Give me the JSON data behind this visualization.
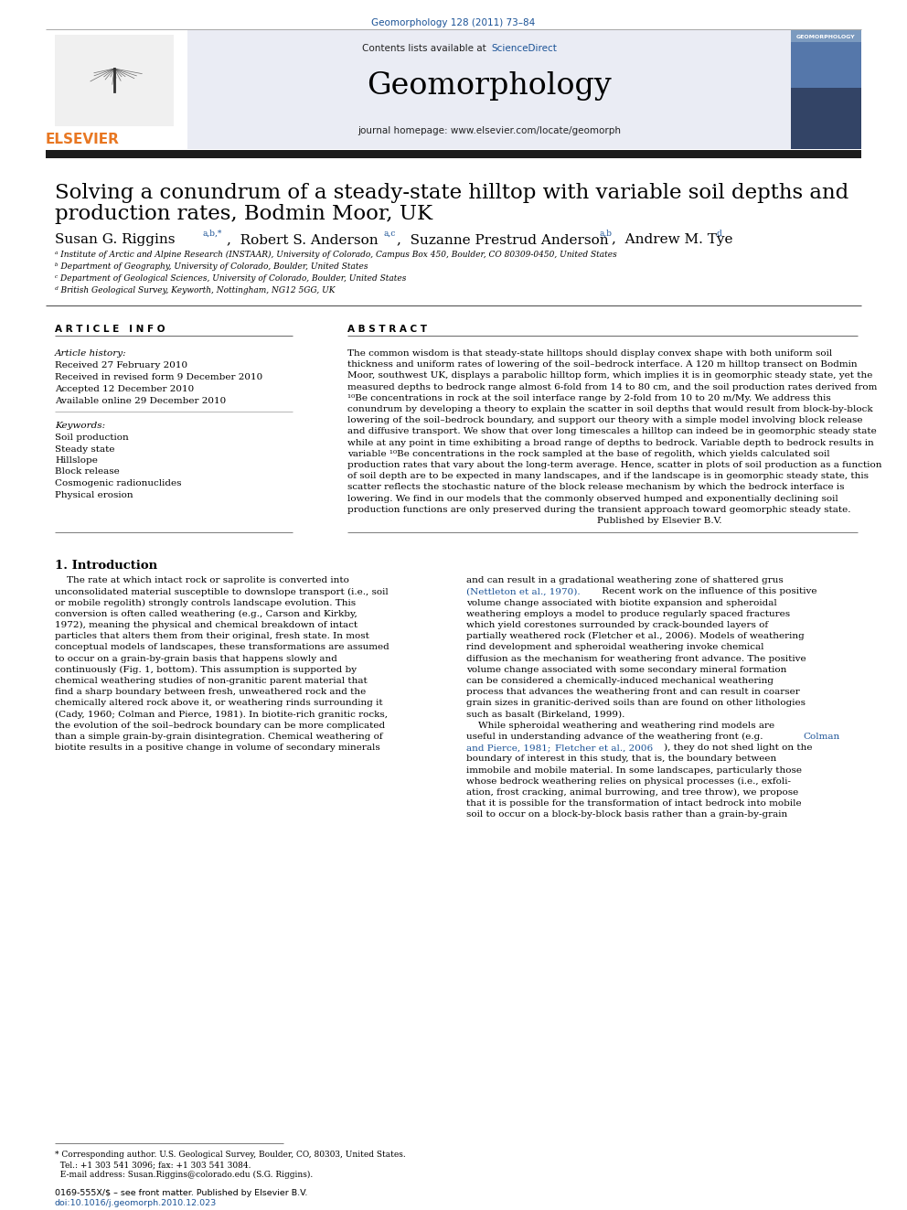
{
  "journal_ref": "Geomorphology 128 (2011) 73–84",
  "contents_text": "Contents lists available at ",
  "sciencedirect_text": "ScienceDirect",
  "journal_name": "Geomorphology",
  "journal_homepage": "journal homepage: www.elsevier.com/locate/geomorph",
  "title_line1": "Solving a conundrum of a steady-state hilltop with variable soil depths and",
  "title_line2": "production rates, Bodmin Moor, UK",
  "affil_a": "Institute of Arctic and Alpine Research (INSTAAR), University of Colorado, Campus Box 450, Boulder, CO 80309-0450, United States",
  "affil_b": "Department of Geography, University of Colorado, Boulder, United States",
  "affil_c": "Department of Geological Sciences, University of Colorado, Boulder, United States",
  "affil_d": "British Geological Survey, Keyworth, Nottingham, NG12 5GG, UK",
  "article_info_header": "A R T I C L E   I N F O",
  "abstract_header": "A B S T R A C T",
  "article_history_label": "Article history:",
  "received1": "Received 27 February 2010",
  "received2": "Received in revised form 9 December 2010",
  "accepted": "Accepted 12 December 2010",
  "available": "Available online 29 December 2010",
  "keywords_label": "Keywords:",
  "keywords": [
    "Soil production",
    "Steady state",
    "Hillslope",
    "Block release",
    "Cosmogenic radionuclides",
    "Physical erosion"
  ],
  "abstract_lines": [
    "The common wisdom is that steady-state hilltops should display convex shape with both uniform soil",
    "thickness and uniform rates of lowering of the soil–bedrock interface. A 120 m hilltop transect on Bodmin",
    "Moor, southwest UK, displays a parabolic hilltop form, which implies it is in geomorphic steady state, yet the",
    "measured depths to bedrock range almost 6-fold from 14 to 80 cm, and the soil production rates derived from",
    "¹⁰Be concentrations in rock at the soil interface range by 2-fold from 10 to 20 m/My. We address this",
    "conundrum by developing a theory to explain the scatter in soil depths that would result from block-by-block",
    "lowering of the soil–bedrock boundary, and support our theory with a simple model involving block release",
    "and diffusive transport. We show that over long timescales a hilltop can indeed be in geomorphic steady state",
    "while at any point in time exhibiting a broad range of depths to bedrock. Variable depth to bedrock results in",
    "variable ¹⁰Be concentrations in the rock sampled at the base of regolith, which yields calculated soil",
    "production rates that vary about the long-term average. Hence, scatter in plots of soil production as a function",
    "of soil depth are to be expected in many landscapes, and if the landscape is in geomorphic steady state, this",
    "scatter reflects the stochastic nature of the block release mechanism by which the bedrock interface is",
    "lowering. We find in our models that the commonly observed humped and exponentially declining soil",
    "production functions are only preserved during the transient approach toward geomorphic steady state.",
    "                                                                                    Published by Elsevier B.V."
  ],
  "intro_header": "1. Introduction",
  "intro1_lines": [
    "    The rate at which intact rock or saprolite is converted into",
    "unconsolidated material susceptible to downslope transport (i.e., soil",
    "or mobile regolith) strongly controls landscape evolution. This",
    "conversion is often called weathering (e.g., Carson and Kirkby,",
    "1972), meaning the physical and chemical breakdown of intact",
    "particles that alters them from their original, fresh state. In most",
    "conceptual models of landscapes, these transformations are assumed",
    "to occur on a grain-by-grain basis that happens slowly and",
    "continuously (Fig. 1, bottom). This assumption is supported by",
    "chemical weathering studies of non-granitic parent material that",
    "find a sharp boundary between fresh, unweathered rock and the",
    "chemically altered rock above it, or weathering rinds surrounding it",
    "(Cady, 1960; Colman and Pierce, 1981). In biotite-rich granitic rocks,",
    "the evolution of the soil–bedrock boundary can be more complicated",
    "than a simple grain-by-grain disintegration. Chemical weathering of",
    "biotite results in a positive change in volume of secondary minerals"
  ],
  "intro2_lines": [
    "and can result in a gradational weathering zone of shattered grus",
    "(Nettleton et al., 1970). Recent work on the influence of this positive",
    "volume change associated with biotite expansion and spheroidal",
    "weathering employs a model to produce regularly spaced fractures",
    "which yield corestones surrounded by crack-bounded layers of",
    "partially weathered rock (Fletcher et al., 2006). Models of weathering",
    "rind development and spheroidal weathering invoke chemical",
    "diffusion as the mechanism for weathering front advance. The positive",
    "volume change associated with some secondary mineral formation",
    "can be considered a chemically-induced mechanical weathering",
    "process that advances the weathering front and can result in coarser",
    "grain sizes in granitic-derived soils than are found on other lithologies",
    "such as basalt (Birkeland, 1999).",
    "    While spheroidal weathering and weathering rind models are",
    "useful in understanding advance of the weathering front (e.g. Colman",
    "and Pierce, 1981; Fletcher et al., 2006), they do not shed light on the",
    "boundary of interest in this study, that is, the boundary between",
    "immobile and mobile material. In some landscapes, particularly those",
    "whose bedrock weathering relies on physical processes (i.e., exfoli-",
    "ation, frost cracking, animal burrowing, and tree throw), we propose",
    "that it is possible for the transformation of intact bedrock into mobile",
    "soil to occur on a block-by-block basis rather than a grain-by-grain"
  ],
  "intro2_link_lines": [
    1,
    14,
    15
  ],
  "footer_line1": "* Corresponding author. U.S. Geological Survey, Boulder, CO, 80303, United States.",
  "footer_line2": "  Tel.: +1 303 541 3096; fax: +1 303 541 3084.",
  "footer_line3": "  E-mail address: Susan.Riggins@colorado.edu (S.G. Riggins).",
  "issn_line": "0169-555X/$ – see front matter. Published by Elsevier B.V.",
  "doi_line": "doi:10.1016/j.geomorph.2010.12.023",
  "header_bg": "#eaecf4",
  "link_color": "#1a5296",
  "dark_bar_color": "#1c1c1c",
  "elsevier_orange": "#e87722",
  "separator_color": "#666666",
  "thin_sep_color": "#aaaaaa"
}
